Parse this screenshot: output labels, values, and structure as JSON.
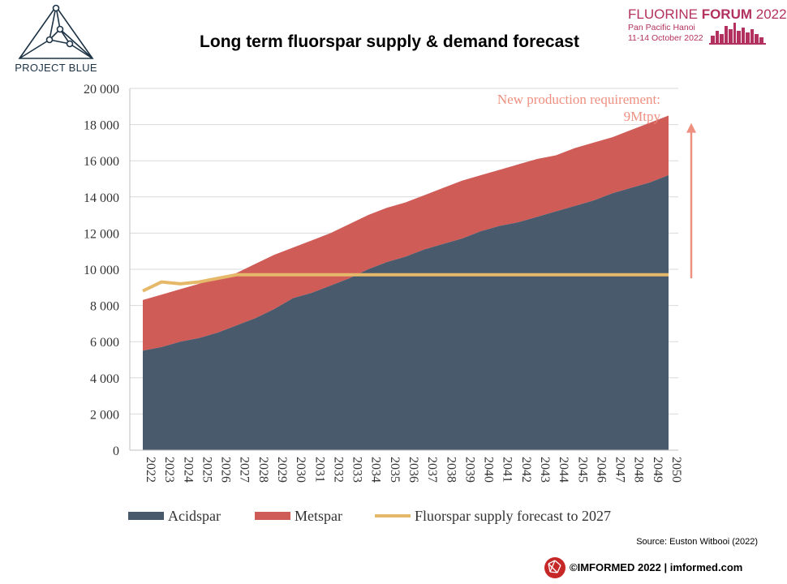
{
  "header": {
    "title": "Long term fluorspar supply & demand forecast",
    "left_logo": {
      "text": "PROJECT BLUE",
      "icon": "network-triangle-icon"
    },
    "right_logo": {
      "name_part1": "FLUORINE ",
      "name_part2": "FORUM",
      "name_part3": " 2022",
      "line2": "Pan Pacific Hanoi",
      "line3": "11-14 October 2022",
      "icon": "city-skyline-icon"
    }
  },
  "footer": {
    "source": "Source: Euston Witbooi (2022)",
    "copyright": "©IMFORMED 2022  | imformed.com",
    "icon": "imformed-globe-icon"
  },
  "colors": {
    "acidspar": "#485a6c",
    "metspar": "#d05c58",
    "supply": "#e6b86a",
    "annotation": "#ee9080"
  },
  "chart_data": {
    "type": "area",
    "x": [
      "2022",
      "2023",
      "2024",
      "2025",
      "2026",
      "2027",
      "2028",
      "2029",
      "2030",
      "2031",
      "2032",
      "2033",
      "2034",
      "2035",
      "2036",
      "2037",
      "2038",
      "2039",
      "2040",
      "2041",
      "2042",
      "2043",
      "2044",
      "2045",
      "2046",
      "2047",
      "2048",
      "2049",
      "2050"
    ],
    "yticks": [
      "0",
      "2 000",
      "4 000",
      "6 000",
      "8 000",
      "10 000",
      "12 000",
      "14 000",
      "16 000",
      "18 000",
      "20 000"
    ],
    "ylim": [
      0,
      20000
    ],
    "grid": true,
    "legend_position": "bottom",
    "series": [
      {
        "name": "Acidspar",
        "kind": "stacked-area",
        "values": [
          5500,
          5700,
          6000,
          6200,
          6500,
          6900,
          7300,
          7800,
          8400,
          8700,
          9100,
          9500,
          10000,
          10400,
          10700,
          11100,
          11400,
          11700,
          12100,
          12400,
          12600,
          12900,
          13200,
          13500,
          13800,
          14200,
          14500,
          14800,
          15200
        ]
      },
      {
        "name": "Metspar",
        "kind": "stacked-area",
        "values": [
          2800,
          2900,
          2900,
          3000,
          3000,
          2900,
          3000,
          3000,
          2800,
          2900,
          2900,
          3000,
          3000,
          3000,
          3000,
          3000,
          3100,
          3200,
          3100,
          3100,
          3200,
          3200,
          3100,
          3200,
          3200,
          3100,
          3200,
          3300,
          3300
        ]
      },
      {
        "name": "Fluorspar supply forecast to 2027",
        "kind": "line",
        "values": [
          8800,
          9300,
          9200,
          9300,
          9500,
          9700,
          9700,
          9700,
          9700,
          9700,
          9700,
          9700,
          9700,
          9700,
          9700,
          9700,
          9700,
          9700,
          9700,
          9700,
          9700,
          9700,
          9700,
          9700,
          9700,
          9700,
          9700,
          9700,
          9700
        ]
      }
    ],
    "annotation": {
      "line1": "New production requirement:",
      "line2": "9Mtpy",
      "arrow_from": 9500,
      "arrow_to": 18000
    }
  }
}
